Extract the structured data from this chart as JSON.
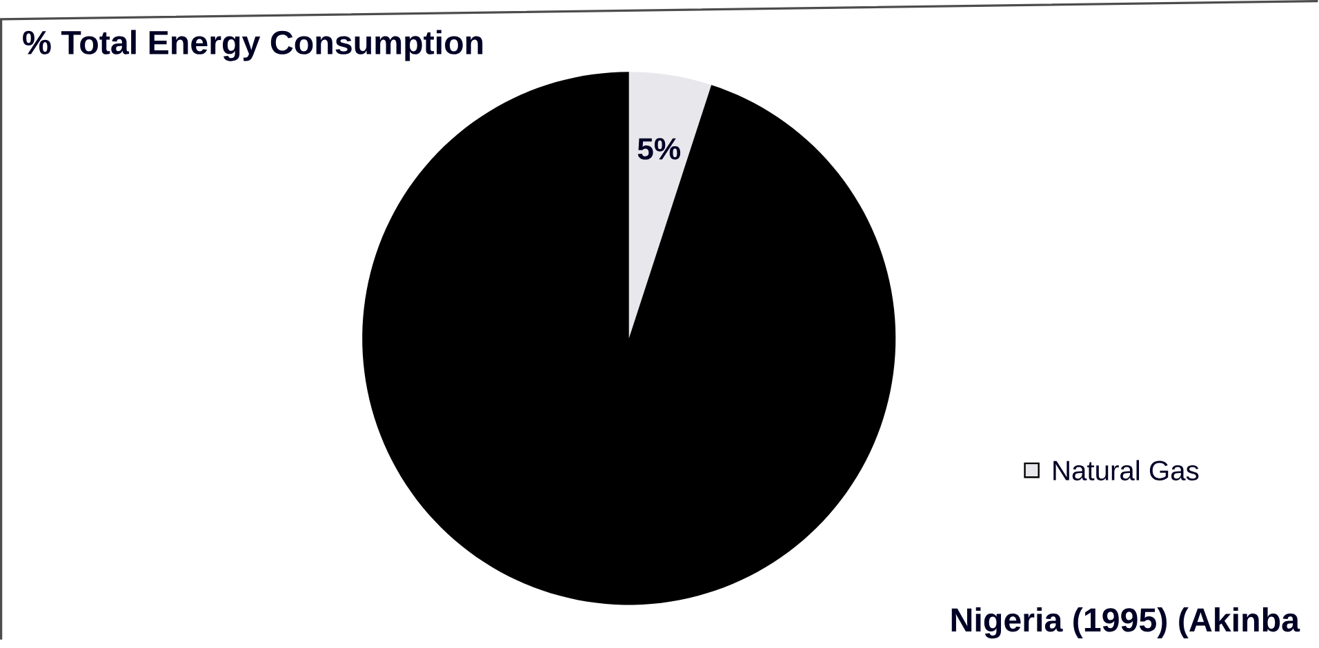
{
  "chart_data": {
    "type": "pie",
    "title": "% Total Energy Consumption",
    "categories": [
      "Natural Gas",
      null
    ],
    "values": [
      5,
      95
    ],
    "colors": [
      "#e8e8ec",
      "#000000"
    ],
    "value_labels": [
      "5%",
      null
    ],
    "legend": "right",
    "annotations": [
      "Nigeria (1995) (Akinba"
    ]
  }
}
